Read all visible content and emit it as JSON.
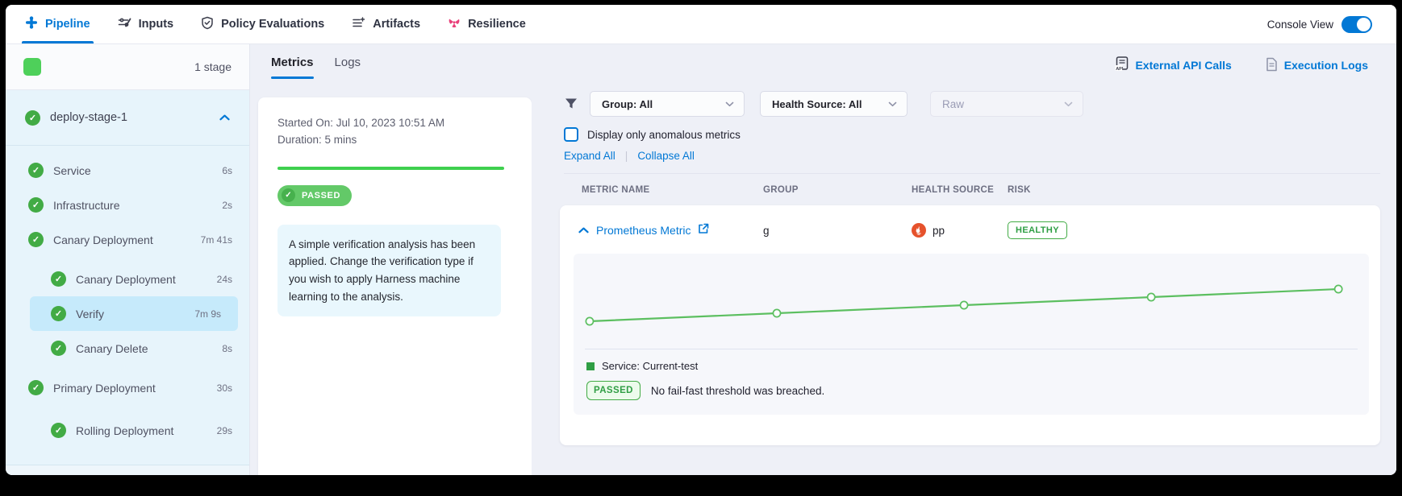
{
  "colors": {
    "accent_blue": "#0278d5",
    "success_green": "#42ab45",
    "bright_green": "#3fd04f",
    "chart_line_green": "#5cbf60",
    "prometheus_red": "#e6522c",
    "resilience_pink": "#e9407a",
    "panel_gray": "#eef0f7",
    "sidebar_blue": "#e7f4fb",
    "sidebar_selected_blue": "#c6eafb"
  },
  "top_nav": {
    "tabs": [
      {
        "label": "Pipeline",
        "active": true
      },
      {
        "label": "Inputs",
        "active": false
      },
      {
        "label": "Policy Evaluations",
        "active": false
      },
      {
        "label": "Artifacts",
        "active": false
      },
      {
        "label": "Resilience",
        "active": false
      }
    ],
    "console_view_label": "Console View",
    "console_view_on": true
  },
  "sidebar": {
    "stage_count": "1 stage",
    "stage": {
      "label": "deploy-stage-1",
      "status": "success",
      "expanded": true
    },
    "steps": [
      {
        "label": "Service",
        "duration": "6s",
        "indent": 1,
        "status": "success",
        "selected": false
      },
      {
        "label": "Infrastructure",
        "duration": "2s",
        "indent": 1,
        "status": "success",
        "selected": false
      },
      {
        "label": "Canary Deployment",
        "duration": "7m 41s",
        "indent": 1,
        "status": "success",
        "selected": false
      },
      {
        "label": "Canary Deployment",
        "duration": "24s",
        "indent": 2,
        "status": "success",
        "selected": false
      },
      {
        "label": "Verify",
        "duration": "7m 9s",
        "indent": 2,
        "status": "success",
        "selected": true
      },
      {
        "label": "Canary Delete",
        "duration": "8s",
        "indent": 2,
        "status": "success",
        "selected": false
      },
      {
        "label": "Primary Deployment",
        "duration": "30s",
        "indent": 1,
        "status": "success",
        "selected": false
      },
      {
        "label": "Rolling Deployment",
        "duration": "29s",
        "indent": 2,
        "status": "success",
        "selected": false
      }
    ]
  },
  "step_details": {
    "tabs": [
      {
        "label": "Metrics",
        "active": true
      },
      {
        "label": "Logs",
        "active": false
      }
    ],
    "started_on": "Started On: Jul 10, 2023 10:51 AM",
    "duration": "Duration: 5 mins",
    "status_badge": "PASSED",
    "description": "A simple verification analysis has been applied. Change the verification type if you wish to apply Harness machine learning to the analysis."
  },
  "verification": {
    "links": [
      {
        "label": "External API Calls"
      },
      {
        "label": "Execution Logs"
      }
    ],
    "filters": {
      "group": "Group: All",
      "health_source": "Health Source: All",
      "raw": "Raw"
    },
    "anomalous_checkbox_label": "Display only anomalous metrics",
    "anomalous_checked": false,
    "expand_all": "Expand All",
    "collapse_all": "Collapse All",
    "table_headers": [
      "METRIC NAME",
      "GROUP",
      "HEALTH SOURCE",
      "RISK"
    ],
    "metric_row": {
      "name": "Prometheus Metric",
      "group": "g",
      "health_source": "pp",
      "risk": "HEALTHY"
    },
    "legend": "Service: Current-test",
    "verdict_badge": "PASSED",
    "verdict_text": "No fail-fast threshold was breached."
  },
  "chart_data": {
    "type": "line",
    "title": "",
    "xlabel": "",
    "ylabel": "",
    "x_tick_labels": [],
    "y_tick_labels": [],
    "grid": false,
    "legend_position": "bottom-left",
    "marker": "hollow-circle",
    "line_color": "#5cbf60",
    "trend": "steadily increasing, approximately linear",
    "series": [
      {
        "name": "Service: Current-test",
        "x": [
          1,
          2,
          3,
          4,
          5
        ],
        "values": [
          1,
          2,
          3,
          4,
          5
        ]
      }
    ],
    "status_annotation": {
      "badge": "PASSED",
      "text": "No fail-fast threshold was breached."
    }
  }
}
